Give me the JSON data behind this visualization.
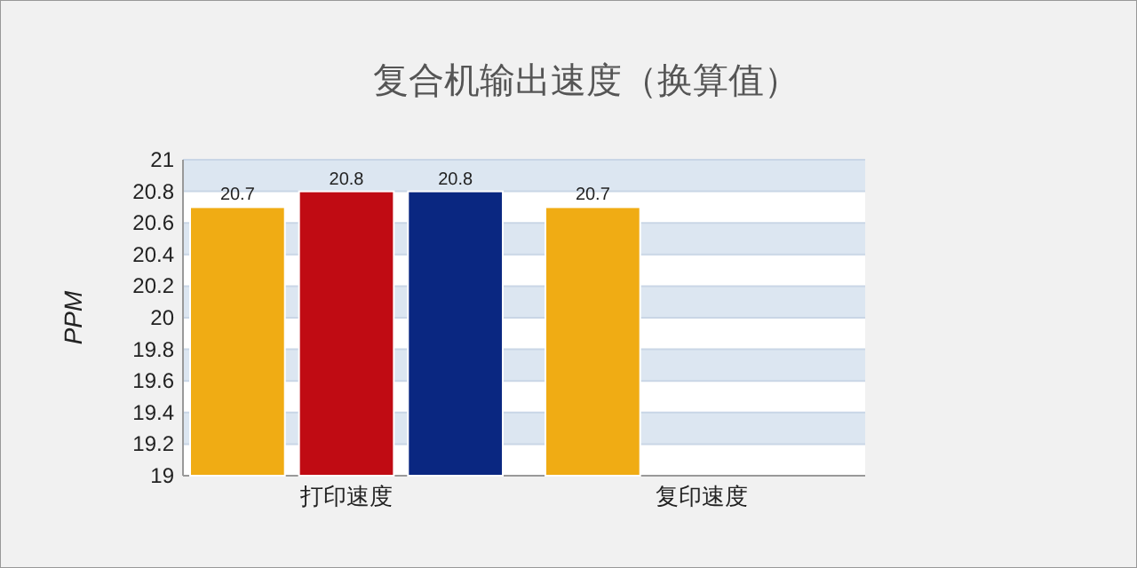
{
  "chart_data": {
    "type": "bar",
    "title": "复合机输出速度（换算值）",
    "ylabel": "PPM",
    "categories": [
      "打印速度",
      "复印速度"
    ],
    "series": [
      {
        "color": "#f0ac14",
        "values": [
          20.7,
          20.7
        ]
      },
      {
        "color": "#c00b13",
        "values": [
          20.8,
          null
        ]
      },
      {
        "color": "#0a2781",
        "values": [
          20.8,
          null
        ]
      }
    ],
    "ylim": [
      19,
      21
    ],
    "yticks": [
      19,
      19.2,
      19.4,
      19.6,
      19.8,
      20,
      20.2,
      20.4,
      20.6,
      20.8,
      21
    ],
    "grid": "y",
    "data_labels": true
  }
}
